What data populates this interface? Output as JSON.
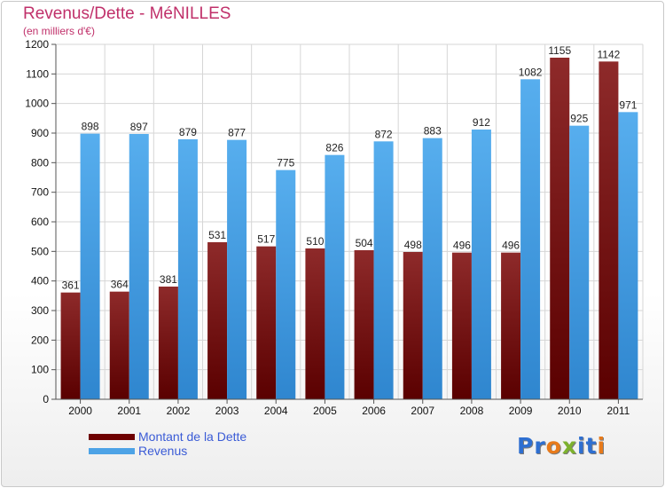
{
  "header": {
    "title": "Revenus/Dette - MéNILLES",
    "subtitle": "(en milliers d'€)"
  },
  "colors": {
    "dette": "#7b1111",
    "revenus": "#4da3e6",
    "title": "#c0306a",
    "legend_text": "#3a5bd6"
  },
  "legend": {
    "items": [
      {
        "label": "Montant de la Dette",
        "color": "#6e0000"
      },
      {
        "label": "Revenus",
        "color": "#4da3e6"
      }
    ]
  },
  "logo": {
    "letters": [
      "P",
      "r",
      "o",
      "x",
      "i",
      "t",
      "i"
    ],
    "colors": [
      "#2e6fd1",
      "#2e6fd1",
      "#e87a1a",
      "#7db12e",
      "#2e6fd1",
      "#2e6fd1",
      "#e87a1a"
    ]
  },
  "chart_data": {
    "type": "bar",
    "title": "Revenus/Dette - MéNILLES",
    "ylabel": "(en milliers d'€)",
    "xlabel": "",
    "categories": [
      "2000",
      "2001",
      "2002",
      "2003",
      "2004",
      "2005",
      "2006",
      "2007",
      "2008",
      "2009",
      "2010",
      "2011"
    ],
    "series": [
      {
        "name": "Montant de la Dette",
        "values": [
          361,
          364,
          381,
          531,
          517,
          510,
          504,
          498,
          496,
          496,
          1155,
          1142
        ]
      },
      {
        "name": "Revenus",
        "values": [
          898,
          897,
          879,
          877,
          775,
          826,
          872,
          883,
          912,
          1082,
          925,
          971
        ]
      }
    ],
    "ylim": [
      0,
      1200
    ],
    "yticks": [
      0,
      100,
      200,
      300,
      400,
      500,
      600,
      700,
      800,
      900,
      1000,
      1100,
      1200
    ],
    "grid": true,
    "legend": "bottom-left"
  }
}
